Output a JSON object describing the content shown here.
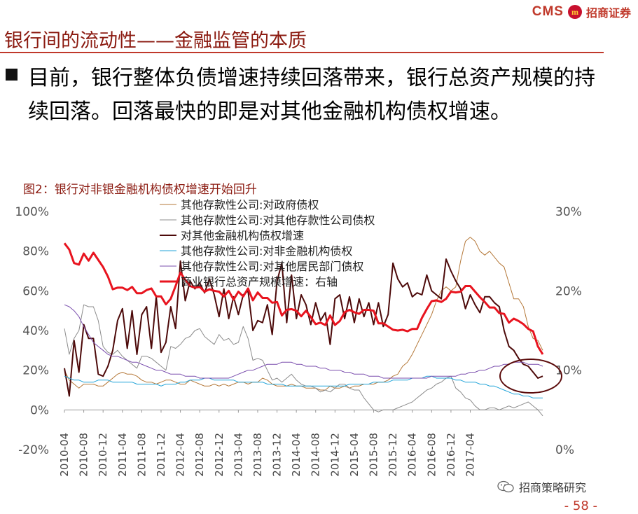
{
  "header": {
    "brand": "CMS",
    "brand_mark": "m",
    "brand_cn": "招商证券"
  },
  "slide": {
    "title": "银行间的流动性——金融监管的本质",
    "body": "目前，银行整体负债增速持续回落带来，银行总资产规模的持续回落。回落最快的即是对其他金融机构债权增速。",
    "figure_caption": "图2：银行对非银金融机构债权增速开始回升"
  },
  "footer": {
    "source_label": "招商策略研究",
    "page_number": "- 58 -"
  },
  "colors": {
    "title": "#8b1a10",
    "accent_red": "#c0392b",
    "s_gov": "#b5793a",
    "s_depcorp": "#8c8c8c",
    "s_otherfin": "#4d0a0a",
    "s_nonbank": "#20a3d8",
    "s_resident": "#7b4fae",
    "s_assets": "#e8141f"
  },
  "chart_data": {
    "type": "line",
    "title": "图2：银行对非银金融机构债权增速开始回升",
    "left_axis": {
      "ylim": [
        -20,
        100
      ],
      "ticks": [
        "100%",
        "80%",
        "60%",
        "40%",
        "20%",
        "0%",
        "-20%"
      ]
    },
    "right_axis": {
      "ylim": [
        0,
        30
      ],
      "ticks": [
        "30%",
        "20%",
        "10%",
        "0%"
      ]
    },
    "x_start": "2010-04",
    "x_end": "2017-07",
    "x_tick_labels": [
      "2010-04",
      "2010-08",
      "2010-12",
      "2011-04",
      "2011-08",
      "2011-12",
      "2012-04",
      "2012-08",
      "2012-12",
      "2013-04",
      "2013-08",
      "2013-12",
      "2014-04",
      "2014-08",
      "2014-12",
      "2015-04",
      "2015-08",
      "2015-12",
      "2016-04",
      "2016-08",
      "2016-12",
      "2017-04"
    ],
    "legend_position": "top-center",
    "series": [
      {
        "name": "其他存款性公司:对政府债权",
        "axis": "left",
        "color_key": "s_gov",
        "width": 1,
        "values": [
          20,
          15,
          13,
          11,
          13,
          13,
          13,
          12,
          12,
          14,
          16,
          18,
          19,
          18,
          18,
          17,
          15,
          14,
          14,
          13,
          14,
          15,
          15,
          14,
          13,
          13,
          15,
          14,
          13,
          12,
          12,
          13,
          12,
          13,
          12,
          13,
          14,
          14,
          13,
          14,
          14,
          16,
          15,
          13,
          12,
          12,
          12,
          13,
          12,
          12,
          11,
          11,
          11,
          10,
          10,
          12,
          11,
          11,
          12,
          11,
          12,
          12,
          13,
          13,
          13,
          14,
          14,
          15,
          17,
          18,
          22,
          24,
          28,
          33,
          38,
          43,
          48,
          55,
          60,
          62,
          60,
          62,
          75,
          85,
          87,
          85,
          80,
          78,
          80,
          77,
          74,
          72,
          64,
          56,
          56,
          52,
          42,
          36,
          35,
          30
        ]
      },
      {
        "name": "其他存款性公司:对其他存款性公司债权",
        "axis": "left",
        "color_key": "s_depcorp",
        "width": 1,
        "values": [
          41,
          28,
          36,
          40,
          53,
          52,
          52,
          45,
          32,
          29,
          28,
          30,
          27,
          25,
          23,
          21,
          27,
          27,
          26,
          24,
          22,
          20,
          32,
          31,
          33,
          36,
          37,
          40,
          41,
          37,
          35,
          33,
          38,
          35,
          36,
          33,
          34,
          42,
          36,
          25,
          26,
          25,
          20,
          15,
          16,
          14,
          16,
          18,
          15,
          13,
          12,
          12,
          11,
          9,
          10,
          9,
          11,
          13,
          13,
          11,
          10,
          10,
          6,
          3,
          0,
          -1,
          0,
          0,
          0,
          1,
          2,
          3,
          4,
          6,
          8,
          10,
          11,
          13,
          14,
          16,
          17,
          11,
          9,
          6,
          5,
          2,
          0,
          0,
          1,
          1,
          0,
          1,
          2,
          1,
          2,
          3,
          4,
          2,
          0,
          -3
        ]
      },
      {
        "name": "对其他金融机构债权增速",
        "axis": "left",
        "color_key": "s_otherfin",
        "width": 2,
        "values": [
          21,
          7,
          35,
          19,
          43,
          36,
          36,
          18,
          17,
          22,
          30,
          45,
          51,
          31,
          50,
          28,
          48,
          52,
          31,
          57,
          29,
          34,
          52,
          41,
          75,
          55,
          65,
          61,
          64,
          59,
          66,
          58,
          47,
          61,
          46,
          57,
          48,
          58,
          60,
          40,
          45,
          44,
          53,
          38,
          65,
          74,
          44,
          68,
          46,
          58,
          53,
          43,
          54,
          45,
          49,
          33,
          56,
          58,
          46,
          57,
          44,
          56,
          47,
          54,
          43,
          54,
          42,
          48,
          74,
          66,
          62,
          64,
          57,
          59,
          58,
          68,
          60,
          58,
          56,
          76,
          70,
          65,
          61,
          51,
          58,
          53,
          49,
          57,
          57,
          54,
          52,
          40,
          32,
          30,
          26,
          23,
          22,
          19,
          16,
          17
        ]
      },
      {
        "name": "其他存款性公司:对非金融机构债权",
        "axis": "left",
        "color_key": "s_nonbank",
        "width": 1,
        "values": [
          17,
          16,
          15,
          15,
          14,
          14,
          14,
          15,
          15,
          15,
          14,
          14,
          14,
          14,
          14,
          13,
          13,
          13,
          13,
          13,
          12,
          13,
          13,
          13,
          14,
          14,
          15,
          15,
          15,
          16,
          16,
          15,
          15,
          15,
          15,
          15,
          14,
          14,
          14,
          14,
          14,
          14,
          13,
          13,
          13,
          13,
          12,
          12,
          12,
          12,
          12,
          12,
          12,
          12,
          12,
          12,
          12,
          12,
          12,
          13,
          13,
          13,
          13,
          13,
          14,
          14,
          14,
          14,
          15,
          15,
          15,
          15,
          16,
          16,
          16,
          17,
          17,
          16,
          16,
          16,
          16,
          15,
          15,
          14,
          14,
          14,
          13,
          13,
          12,
          12,
          11,
          10,
          9,
          8,
          8,
          7,
          7,
          6,
          6,
          6
        ]
      },
      {
        "name": "其他存款性公司:对其他居民部门债权",
        "axis": "left",
        "color_key": "s_resident",
        "width": 1,
        "values": [
          53,
          52,
          50,
          47,
          42,
          38,
          34,
          32,
          30,
          28,
          27,
          27,
          26,
          25,
          24,
          24,
          23,
          22,
          21,
          20,
          20,
          19,
          18,
          18,
          18,
          17,
          17,
          17,
          16,
          16,
          16,
          16,
          16,
          16,
          16,
          17,
          18,
          19,
          20,
          20,
          21,
          22,
          23,
          23,
          23,
          24,
          24,
          24,
          23,
          23,
          22,
          22,
          22,
          21,
          21,
          20,
          20,
          20,
          19,
          19,
          18,
          18,
          18,
          17,
          17,
          17,
          16,
          16,
          16,
          16,
          16,
          16,
          16,
          16,
          16,
          16,
          17,
          17,
          17,
          17,
          17,
          17,
          18,
          18,
          19,
          19,
          20,
          20,
          21,
          22,
          22,
          23,
          23,
          24,
          24,
          24,
          23,
          23,
          23,
          22
        ]
      },
      {
        "name": "商业银行总资产规模增速：右轴",
        "axis": "right",
        "color_key": "s_assets",
        "width": 3,
        "values": [
          26,
          25.2,
          23.5,
          23.3,
          24.7,
          23.8,
          24.8,
          23.9,
          23,
          21.8,
          20.2,
          20.4,
          20.4,
          20.1,
          20.5,
          19.7,
          19.7,
          20.1,
          20.3,
          19.3,
          19.3,
          18.3,
          19,
          20.6,
          22.3,
          21.4,
          20.6,
          20.4,
          20.5,
          19.9,
          20.2,
          20,
          19.9,
          19.3,
          20,
          18.9,
          19.9,
          19.3,
          20.3,
          18.8,
          19.8,
          19.1,
          19.1,
          18.5,
          18.6,
          16.9,
          17.6,
          17.7,
          17.5,
          16.8,
          17.5,
          16.7,
          15.8,
          16,
          15.7,
          16.9,
          15.7,
          16.2,
          17.3,
          17.6,
          17.3,
          17.1,
          17.6,
          17.6,
          17.5,
          15.9,
          15.9,
          15.5,
          15.1,
          15,
          15.1,
          14.9,
          15.2,
          15.2,
          16.6,
          17.7,
          18.7,
          18.8,
          18.6,
          19,
          19.9,
          19.8,
          19.9,
          20.6,
          20.6,
          19.9,
          19.2,
          18.6,
          17.9,
          17.9,
          17.2,
          17.1,
          16,
          16.5,
          16.2,
          15.8,
          15.2,
          14.9,
          13,
          12
        ]
      }
    ],
    "annotation": "circle around recent decline of 对其他金融机构债权增速"
  }
}
